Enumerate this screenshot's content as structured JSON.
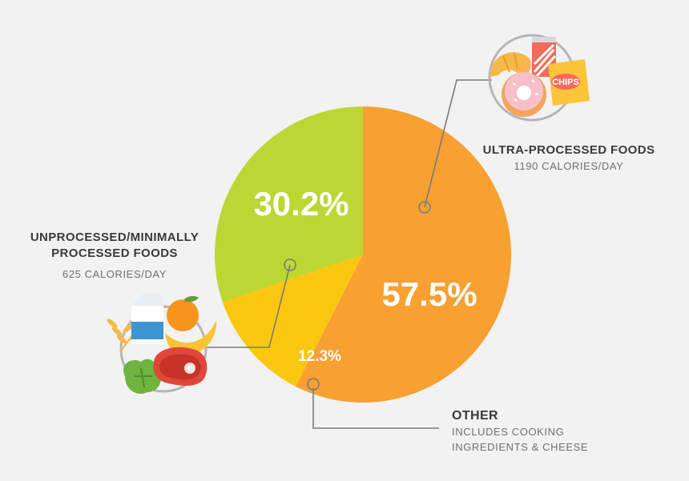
{
  "chart_data": {
    "type": "pie",
    "slices": [
      {
        "label": "ULTRA-PROCESSED FOODS",
        "value": 57.5,
        "value_label": "57.5%",
        "sublabel": "1190 CALORIES/DAY",
        "color": "#f8a031"
      },
      {
        "label": "OTHER",
        "value": 12.3,
        "value_label": "12.3%",
        "sublabel": "INCLUDES COOKING INGREDIENTS & CHEESE",
        "color": "#fbc710"
      },
      {
        "label": "UNPROCESSED/MINIMALLY PROCESSED FOODS",
        "value": 30.2,
        "value_label": "30.2%",
        "sublabel": "625 CALORIES/DAY",
        "color": "#bcd733"
      }
    ]
  },
  "labels": {
    "ultra_title": "ULTRA-PROCESSED FOODS",
    "ultra_sub": "1190 CALORIES/DAY",
    "unprocessed_title_1": "UNPROCESSED/MINIMALLY",
    "unprocessed_title_2": "PROCESSED FOODS",
    "unprocessed_sub": "625 CALORIES/DAY",
    "other_title": "OTHER",
    "other_sub_1": "INCLUDES COOKING",
    "other_sub_2": "INGREDIENTS & CHEESE",
    "chips_text": "CHIPS"
  },
  "colors": {
    "background": "#f2f2f2",
    "leader_line": "#7a7a7a",
    "icon_ring": "#b5b5b5"
  },
  "icons": [
    "processed-foods-illustration",
    "whole-foods-illustration"
  ]
}
